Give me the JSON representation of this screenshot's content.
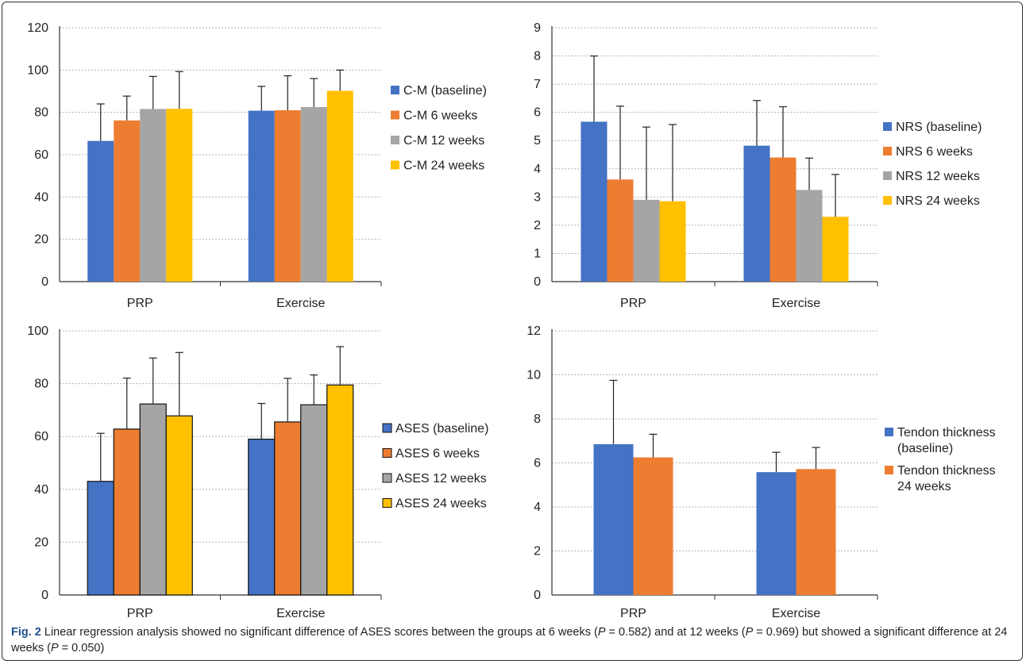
{
  "colors": {
    "blue": "#4472c4",
    "orange": "#ed7d31",
    "gray": "#a5a5a5",
    "yellow": "#ffc000",
    "caption_label": "#1f4e8c"
  },
  "chart_data": [
    {
      "id": "cm",
      "type": "bar",
      "categories": [
        "PRP",
        "Exercise"
      ],
      "ylim": [
        0,
        120
      ],
      "yticks": [
        "0",
        "20",
        "40",
        "60",
        "80",
        "100",
        "120"
      ],
      "grid": true,
      "legend_placement": "right",
      "error_bars": true,
      "series": [
        {
          "name": "C-M (baseline)",
          "color": "#4472c4",
          "values": [
            66.5,
            80.8
          ],
          "errors": [
            17.5,
            11.5
          ]
        },
        {
          "name": "C-M 6 weeks",
          "color": "#ed7d31",
          "values": [
            76.2,
            81.0
          ],
          "errors": [
            11.5,
            16.3
          ]
        },
        {
          "name": "C-M 12 weeks",
          "color": "#a5a5a5",
          "values": [
            81.6,
            82.5
          ],
          "errors": [
            15.4,
            13.5
          ]
        },
        {
          "name": "C-M 24 weeks",
          "color": "#ffc000",
          "values": [
            81.7,
            90.2
          ],
          "errors": [
            17.6,
            9.8
          ]
        }
      ]
    },
    {
      "id": "nrs",
      "type": "bar",
      "categories": [
        "PRP",
        "Exercise"
      ],
      "ylim": [
        0,
        9
      ],
      "yticks": [
        "0",
        "1",
        "2",
        "3",
        "4",
        "5",
        "6",
        "7",
        "8",
        "9"
      ],
      "grid": true,
      "legend_placement": "right",
      "error_bars": true,
      "series": [
        {
          "name": "NRS (baseline)",
          "color": "#4472c4",
          "values": [
            5.67,
            4.82
          ],
          "errors": [
            2.33,
            1.6
          ]
        },
        {
          "name": "NRS 6 weeks",
          "color": "#ed7d31",
          "values": [
            3.62,
            4.4
          ],
          "errors": [
            2.6,
            1.8
          ]
        },
        {
          "name": "NRS 12 weeks",
          "color": "#a5a5a5",
          "values": [
            2.9,
            3.25
          ],
          "errors": [
            2.58,
            1.13
          ]
        },
        {
          "name": "NRS 24 weeks",
          "color": "#ffc000",
          "values": [
            2.85,
            2.3
          ],
          "errors": [
            2.72,
            1.5
          ]
        }
      ]
    },
    {
      "id": "ases",
      "type": "bar",
      "categories": [
        "PRP",
        "Exercise"
      ],
      "ylim": [
        0,
        100
      ],
      "yticks": [
        "0",
        "20",
        "40",
        "60",
        "80",
        "100"
      ],
      "grid": true,
      "legend_placement": "right",
      "error_bars": true,
      "outlined_bars": true,
      "series": [
        {
          "name": "ASES (baseline)",
          "color": "#4472c4",
          "values": [
            43.0,
            59.0
          ],
          "errors": [
            18.2,
            13.5
          ]
        },
        {
          "name": "ASES 6 weeks",
          "color": "#ed7d31",
          "values": [
            62.8,
            65.5
          ],
          "errors": [
            19.3,
            16.5
          ]
        },
        {
          "name": "ASES 12 weeks",
          "color": "#a5a5a5",
          "values": [
            72.3,
            72.0
          ],
          "errors": [
            17.4,
            11.3
          ]
        },
        {
          "name": "ASES 24 weeks",
          "color": "#ffc000",
          "values": [
            67.8,
            79.5
          ],
          "errors": [
            24.0,
            14.5
          ]
        }
      ]
    },
    {
      "id": "tendon",
      "type": "bar",
      "categories": [
        "PRP",
        "Exercise"
      ],
      "ylim": [
        0,
        12
      ],
      "yticks": [
        "0",
        "2",
        "4",
        "6",
        "8",
        "10",
        "12"
      ],
      "grid": true,
      "legend_placement": "right",
      "error_bars": true,
      "series": [
        {
          "name": "Tendon thickness (baseline)",
          "color": "#4472c4",
          "values": [
            6.85,
            5.58
          ],
          "errors": [
            2.9,
            0.9
          ]
        },
        {
          "name": "Tendon thickness 24 weeks",
          "color": "#ed7d31",
          "values": [
            6.25,
            5.72
          ],
          "errors": [
            1.05,
            0.98
          ]
        }
      ]
    }
  ],
  "caption": {
    "label": "Fig. 2",
    "text_1": "Linear regression analysis showed no significant difference of ASES scores between the groups at 6 weeks (",
    "p": "P",
    "text_2": " = 0.582) and at 12 weeks (",
    "text_3": " = 0.969) but showed a significant difference at 24 weeks (",
    "text_4": " = 0.050)"
  }
}
